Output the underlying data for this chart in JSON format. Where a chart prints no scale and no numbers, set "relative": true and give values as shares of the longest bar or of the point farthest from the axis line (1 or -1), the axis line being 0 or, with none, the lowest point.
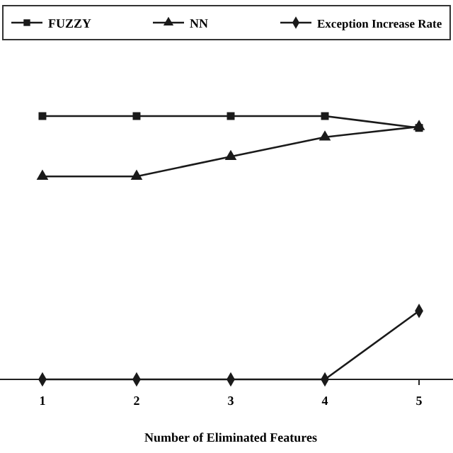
{
  "chart_data": {
    "type": "line",
    "relative": true,
    "xlabel": "Number of Eliminated Features",
    "categories": [
      "1",
      "2",
      "3",
      "4",
      "5"
    ],
    "legend": "top",
    "series": [
      {
        "name": "FUZZY",
        "color": "#1a1a1a",
        "marker": "square",
        "values": [
          1,
          1,
          1,
          1,
          0.955
        ]
      },
      {
        "name": "NN",
        "color": "#1a1a1a",
        "marker": "triangle",
        "values": [
          0.771,
          0.771,
          0.846,
          0.92,
          0.96
        ]
      },
      {
        "name": "Exception Increase Rate",
        "color": "#1a1a1a",
        "marker": "diamond",
        "values": [
          0,
          0,
          0,
          0,
          0.26
        ]
      }
    ]
  }
}
